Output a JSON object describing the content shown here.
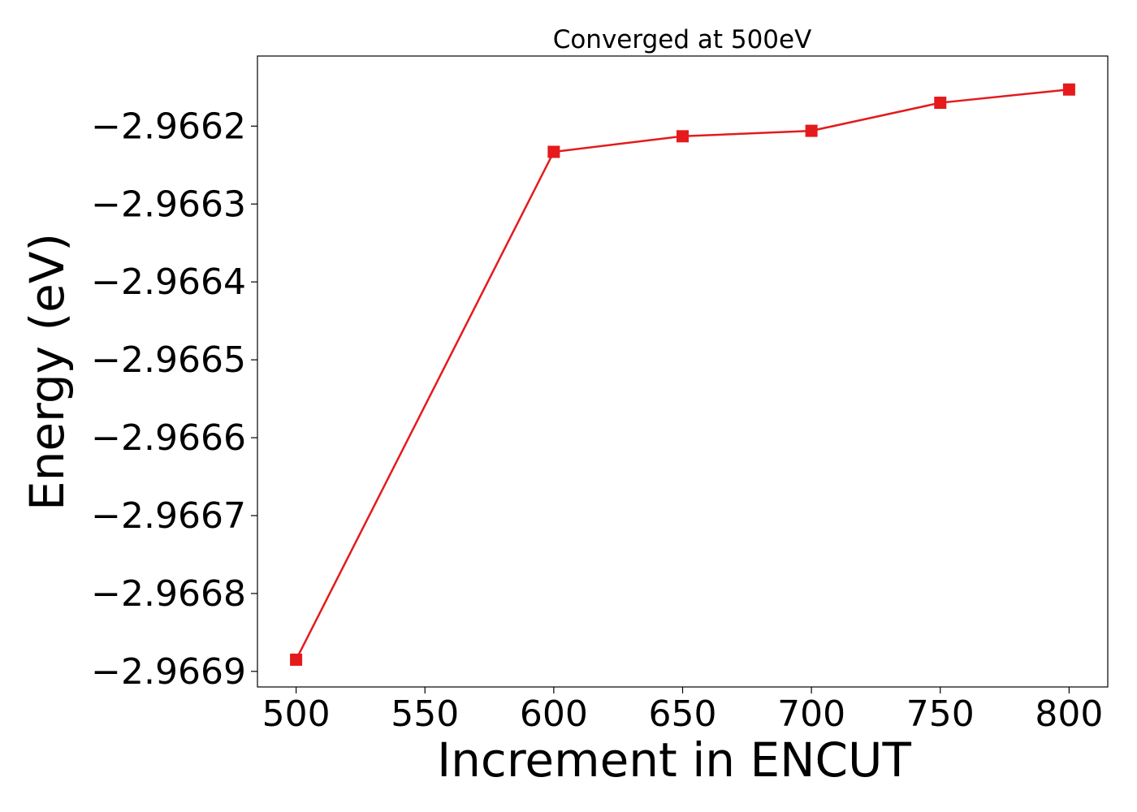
{
  "chart_data": {
    "type": "line",
    "title": "Converged at 500eV",
    "xlabel": "Increment in ENCUT",
    "ylabel": "Energy (eV)",
    "xlim": [
      485,
      815
    ],
    "ylim": [
      -2.96692,
      -2.96611
    ],
    "x_ticks": [
      500,
      550,
      600,
      650,
      700,
      750,
      800
    ],
    "x_tick_labels": [
      "500",
      "550",
      "600",
      "650",
      "700",
      "750",
      "800"
    ],
    "y_ticks": [
      -2.9669,
      -2.9668,
      -2.9667,
      -2.9666,
      -2.9665,
      -2.9664,
      -2.9663,
      -2.9662
    ],
    "y_tick_labels": [
      "−2.9669",
      "−2.9668",
      "−2.9667",
      "−2.9666",
      "−2.9665",
      "−2.9664",
      "−2.9663",
      "−2.9662"
    ],
    "grid": false,
    "series": [
      {
        "color": "#e41a1c",
        "marker": "square",
        "x": [
          500,
          600,
          650,
          700,
          750,
          800
        ],
        "y": [
          -2.966885,
          -2.966233,
          -2.966213,
          -2.966206,
          -2.96617,
          -2.966153
        ]
      }
    ]
  }
}
